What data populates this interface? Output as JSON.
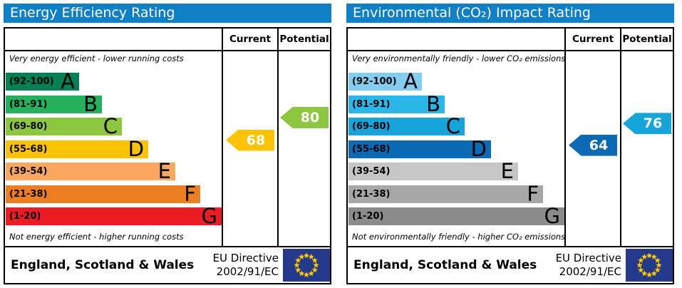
{
  "colors": {
    "header_bg": "#1080c6",
    "header_text": "#ffffff",
    "flag_blue": "#24388c",
    "star_yellow": "#ffcc00"
  },
  "chart_data": [
    {
      "type": "bar",
      "title": "Energy Efficiency Rating",
      "columns": {
        "current": "Current",
        "potential": "Potential"
      },
      "top_caption": "Very energy efficient - lower running costs",
      "bottom_caption": "Not energy efficient - higher running costs",
      "bands": [
        {
          "letter": "A",
          "range_label": "(92-100)",
          "min": 92,
          "max": 100,
          "color": "#008054"
        },
        {
          "letter": "B",
          "range_label": "(81-91)",
          "min": 81,
          "max": 91,
          "color": "#23b25b"
        },
        {
          "letter": "C",
          "range_label": "(69-80)",
          "min": 69,
          "max": 80,
          "color": "#8dc63f"
        },
        {
          "letter": "D",
          "range_label": "(55-68)",
          "min": 55,
          "max": 68,
          "color": "#fcc400"
        },
        {
          "letter": "E",
          "range_label": "(39-54)",
          "min": 39,
          "max": 54,
          "color": "#faa860"
        },
        {
          "letter": "F",
          "range_label": "(21-38)",
          "min": 21,
          "max": 38,
          "color": "#ef7d22"
        },
        {
          "letter": "G",
          "range_label": "(1-20)",
          "min": 1,
          "max": 20,
          "color": "#ec1c24"
        }
      ],
      "current": {
        "value": 68,
        "color": "#fcc400"
      },
      "potential": {
        "value": 80,
        "color": "#8dc63f"
      },
      "footer": {
        "region": "England, Scotland & Wales",
        "directive_line1": "EU Directive",
        "directive_line2": "2002/91/EC"
      }
    },
    {
      "type": "bar",
      "title": "Environmental (CO₂) Impact Rating",
      "columns": {
        "current": "Current",
        "potential": "Potential"
      },
      "top_caption": "Very environmentally friendly - lower CO₂ emissions",
      "bottom_caption": "Not environmentally friendly - higher CO₂ emissions",
      "bands": [
        {
          "letter": "A",
          "range_label": "(92-100)",
          "min": 92,
          "max": 100,
          "color": "#83cef0"
        },
        {
          "letter": "B",
          "range_label": "(81-91)",
          "min": 81,
          "max": 91,
          "color": "#2bb6e9"
        },
        {
          "letter": "C",
          "range_label": "(69-80)",
          "min": 69,
          "max": 80,
          "color": "#17a4db"
        },
        {
          "letter": "D",
          "range_label": "(55-68)",
          "min": 55,
          "max": 68,
          "color": "#0c6ab4"
        },
        {
          "letter": "E",
          "range_label": "(39-54)",
          "min": 39,
          "max": 54,
          "color": "#c6c6c6"
        },
        {
          "letter": "F",
          "range_label": "(21-38)",
          "min": 21,
          "max": 38,
          "color": "#a7a7a7"
        },
        {
          "letter": "G",
          "range_label": "(1-20)",
          "min": 1,
          "max": 20,
          "color": "#8b8b8b"
        }
      ],
      "current": {
        "value": 64,
        "color": "#0c6ab4"
      },
      "potential": {
        "value": 76,
        "color": "#17a4db"
      },
      "footer": {
        "region": "England, Scotland & Wales",
        "directive_line1": "EU Directive",
        "directive_line2": "2002/91/EC"
      }
    }
  ]
}
